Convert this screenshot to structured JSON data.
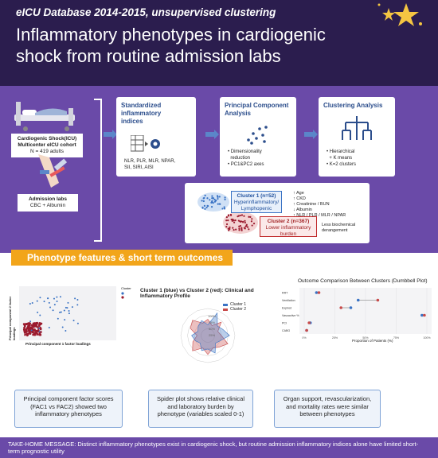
{
  "header": {
    "supertitle": "eICU Database 2014-2015, unsupervised clustering",
    "title": "Inflammatory phenotypes in cardiogenic shock from routine admission labs"
  },
  "cohort": {
    "line1": "Cardiogenic Shock(ICU)",
    "line2": "Multicenter eICU cohort",
    "line3": "N = 419 adults"
  },
  "labs": {
    "line1": "Admission labs",
    "line2": "CBC + Albumin"
  },
  "steps": [
    {
      "title": "Standardized inflammatory indices",
      "desc1": "NLR, PLR, MLR, NPAR,",
      "desc2": "SII, SIRI, AISI"
    },
    {
      "title": "Principal Component Analysis",
      "desc1": "• Dimensionality",
      "desc2": "  reduction",
      "desc3": "• PC1&PC2 axes"
    },
    {
      "title": "Clustering Analysis",
      "desc1": "• Hierarchical",
      "desc2": "  + K means",
      "desc3": "• K=2 clusters"
    }
  ],
  "cluster1": {
    "name": "Cluster 1 (n=52)",
    "desc1": "Hyperinflammatory/",
    "desc2": "Lymphopenic",
    "notes": [
      "↑ Age",
      "↑ CKD",
      "↑ Creatinine / BUN",
      "↓ Albumin",
      "↑ NLR / PLR / MLR / NPAR"
    ]
  },
  "cluster2": {
    "name": "Cluster 2 (n=367)",
    "desc1": "Lower inflammatory",
    "desc2": "burden",
    "notes1": "Less biochemical",
    "notes2": "derangement"
  },
  "banner": "Phenotype features & short term outcomes",
  "scatter": {
    "legend_title": "Cluster",
    "xlabel": "Principal component 1 factor loadings",
    "ylabel": "Principal component 2 factor loadings"
  },
  "radar": {
    "title": "Cluster 1 (blue) vs Cluster 2 (red): Clinical and Inflammatory Profile",
    "legend": [
      "Cluster 1",
      "Cluster 2"
    ],
    "rings": [
      "100%",
      "75%",
      "50%",
      "25%"
    ]
  },
  "dumbbell": {
    "title": "Outcome Comparison Between Clusters (Dumbbell Plot)",
    "xlabel": "Proportion of Patients (%)"
  },
  "chart_data": [
    {
      "type": "dumbbell",
      "title": "Outcome Comparison Between Clusters (Dumbbell Plot)",
      "xlabel": "Proportion of Patients (%)",
      "categories": [
        "RRT",
        "Ventilation",
        "Expired",
        "Vasoactive %",
        "PCI",
        "CABG"
      ],
      "series": [
        {
          "name": "Cluster 1",
          "values": [
            10,
            44,
            38,
            96,
            5,
            2
          ]
        },
        {
          "name": "Cluster 2",
          "values": [
            12,
            60,
            30,
            98,
            4,
            2
          ]
        }
      ],
      "xlim": [
        0,
        100
      ]
    }
  ],
  "notes": [
    "Principal component factor scores (FAC1 vs FAC2) showed two inflammatory phenotypes",
    "Spider plot shows relative clinical and laboratory burden by phenotype (variables scaled 0-1)",
    "Organ support, revascularization, and mortality rates were similar between phenotypes"
  ],
  "footer": "TAKE-HOME MESSAGE: Distinct inflammatory phenotypes exist in cardiogenic shock, but routine admission inflammatory indices alone have limited short-term prognostic utility",
  "colors": {
    "cluster1": "#3a73c4",
    "cluster2": "#9b1b2e",
    "accent": "#f2a51a",
    "header": "#2b1d4e",
    "band": "#6a4aa8"
  }
}
